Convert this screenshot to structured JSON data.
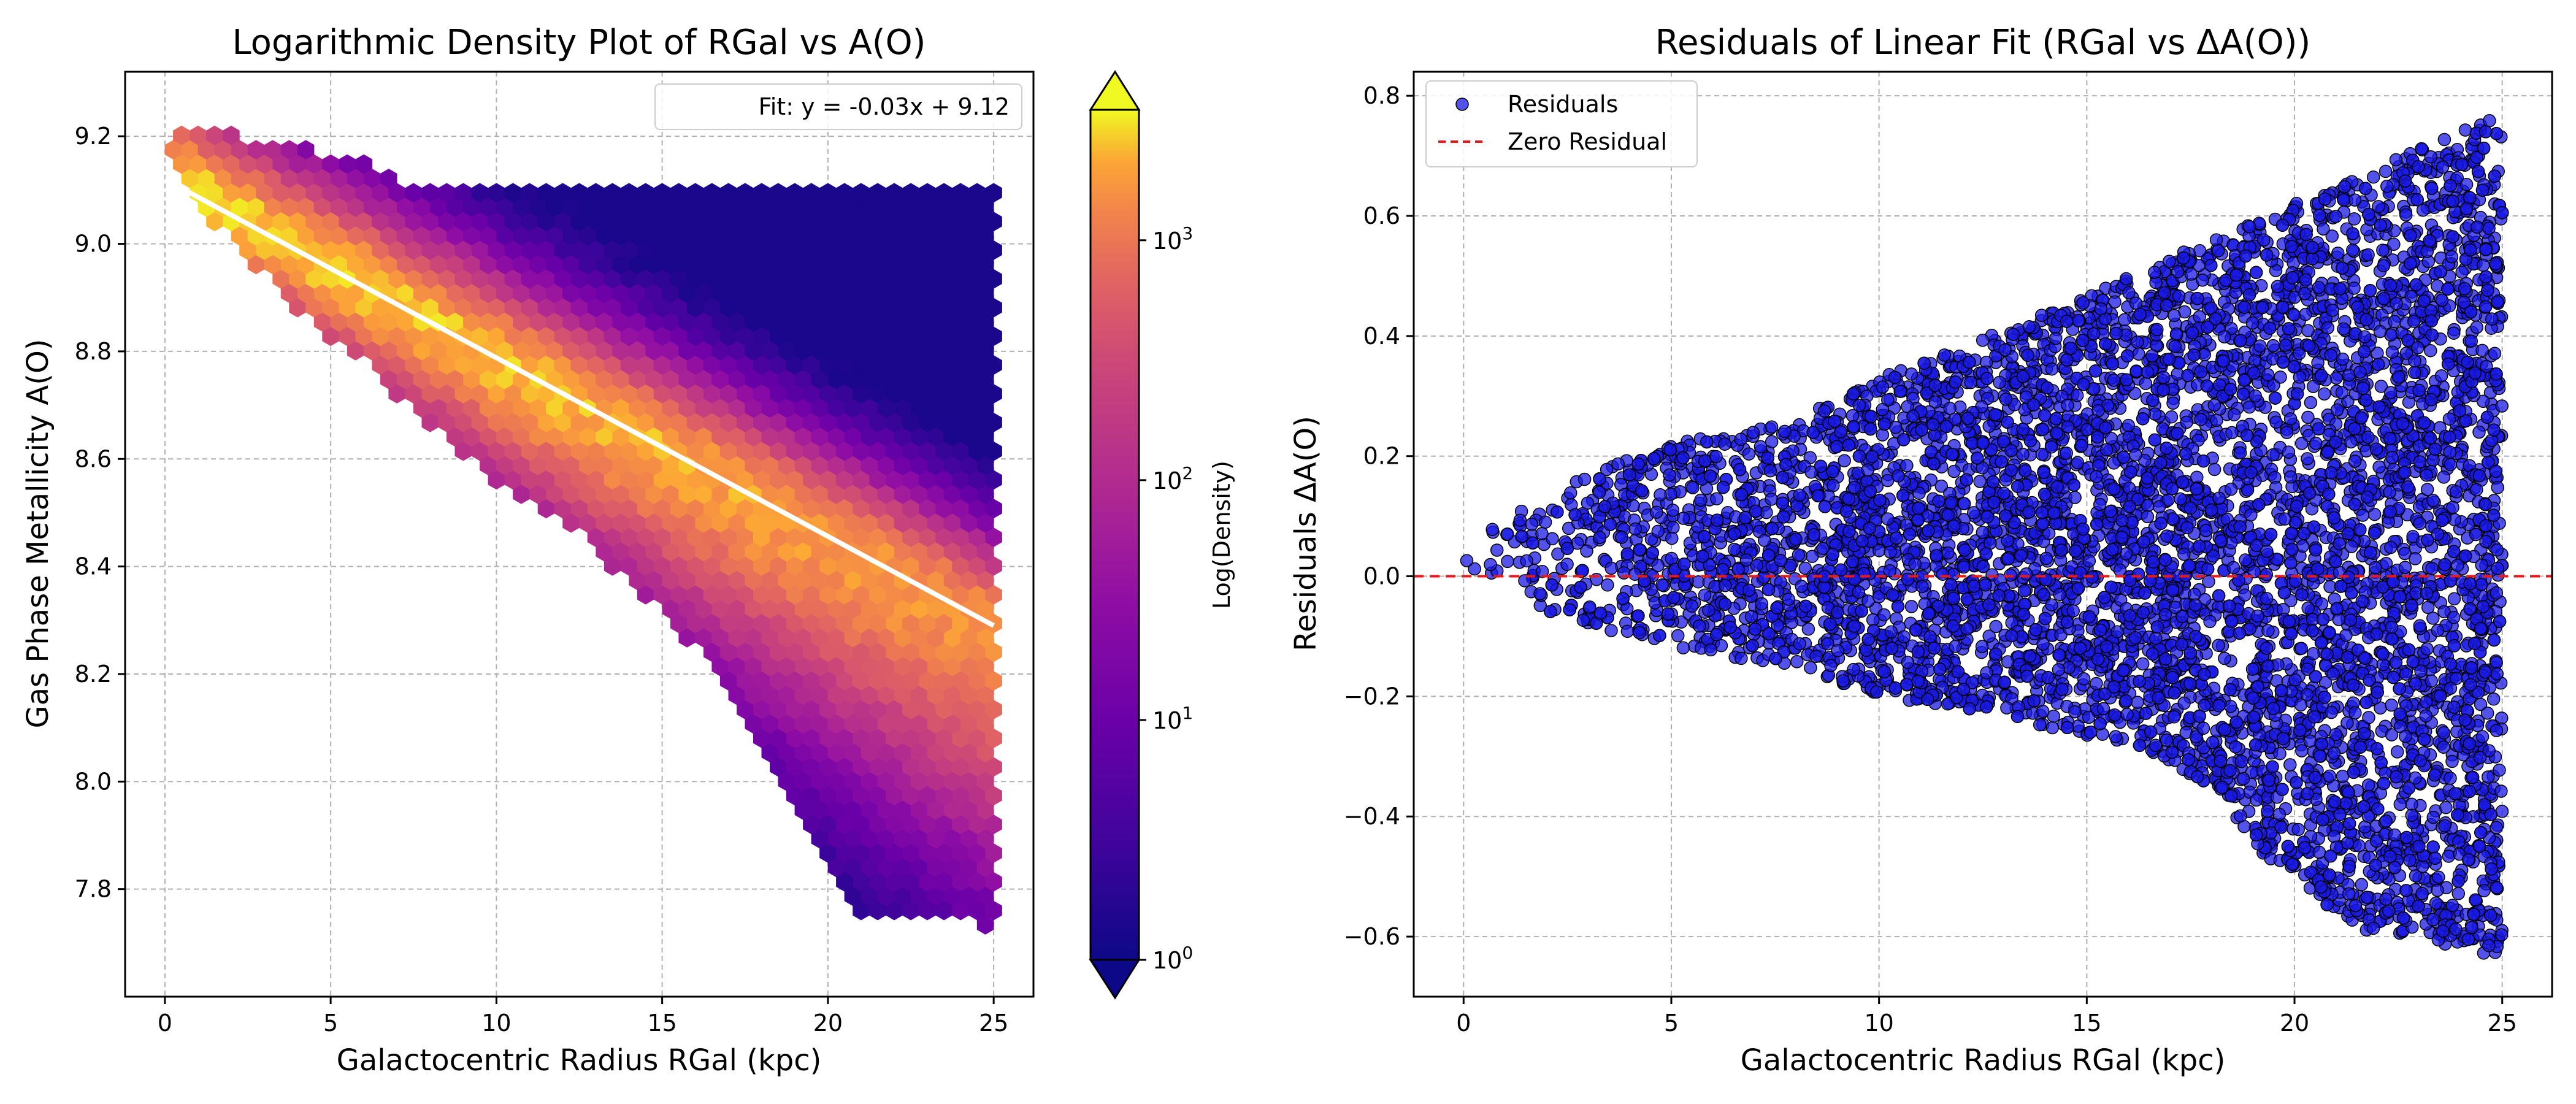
{
  "chart_data": [
    {
      "type": "hexbin",
      "title": "Logarithmic Density Plot of RGal vs A(O)",
      "xlabel": "Galactocentric Radius RGal (kpc)",
      "ylabel": "Gas Phase Metallicity A(O)",
      "xlim": [
        -1.2,
        26.2
      ],
      "ylim": [
        7.6,
        9.32
      ],
      "xticks": [
        0,
        5,
        10,
        15,
        20,
        25
      ],
      "yticks": [
        7.8,
        8.0,
        8.2,
        8.4,
        8.6,
        8.8,
        9.0,
        9.2
      ],
      "grid": true,
      "colormap": "plasma",
      "color_scale": "log",
      "colorbar": {
        "label": "Log(Density)",
        "range": [
          1,
          3500
        ],
        "ticks": [
          {
            "base": "10",
            "exp": "0",
            "value": 1
          },
          {
            "base": "10",
            "exp": "1",
            "value": 10
          },
          {
            "base": "10",
            "exp": "2",
            "value": 100
          },
          {
            "base": "10",
            "exp": "3",
            "value": 1000
          }
        ],
        "extend": "both"
      },
      "fit_line": {
        "label": "Fit: y = -0.03x + 9.12",
        "slope": -0.0332,
        "intercept": 9.12,
        "x_range": [
          0,
          25
        ],
        "color": "#ffffff"
      },
      "legend": {
        "position": "upper-right",
        "entries": [
          "Fit: y = -0.03x + 9.12"
        ]
      },
      "data_envelope": {
        "x_range": [
          0,
          25
        ],
        "upper_edge": [
          [
            0,
            9.2
          ],
          [
            1,
            9.22
          ],
          [
            3,
            9.19
          ],
          [
            5,
            9.17
          ],
          [
            6,
            9.15
          ],
          [
            7,
            9.12
          ],
          [
            25,
            9.1
          ]
        ],
        "lower_edge": [
          [
            0,
            9.15
          ],
          [
            2,
            9.0
          ],
          [
            4,
            8.87
          ],
          [
            6,
            8.78
          ],
          [
            8,
            8.66
          ],
          [
            10,
            8.56
          ],
          [
            12,
            8.49
          ],
          [
            14,
            8.37
          ],
          [
            16,
            8.25
          ],
          [
            18,
            8.08
          ],
          [
            20,
            7.86
          ],
          [
            21,
            7.75
          ],
          [
            25,
            7.73
          ]
        ]
      }
    },
    {
      "type": "scatter",
      "title": "Residuals of Linear Fit (RGal vs ΔA(O))",
      "xlabel": "Galactocentric Radius RGal (kpc)",
      "ylabel": "Residuals ΔA(O)",
      "xlim": [
        -1.2,
        26.2
      ],
      "ylim": [
        -0.7,
        0.84
      ],
      "xticks": [
        0,
        5,
        10,
        15,
        20,
        25
      ],
      "yticks": [
        -0.6,
        -0.4,
        -0.2,
        0.0,
        0.2,
        0.4,
        0.6,
        0.8
      ],
      "grid": true,
      "series": [
        {
          "name": "Residuals",
          "color": "#1a1ae6",
          "edge_color": "#000000",
          "envelope_upper": [
            [
              0,
              0.03
            ],
            [
              1,
              0.1
            ],
            [
              3,
              0.17
            ],
            [
              5,
              0.22
            ],
            [
              8,
              0.26
            ],
            [
              10,
              0.33
            ],
            [
              12,
              0.38
            ],
            [
              15,
              0.47
            ],
            [
              18,
              0.56
            ],
            [
              20,
              0.62
            ],
            [
              22,
              0.68
            ],
            [
              24.5,
              0.76
            ]
          ],
          "envelope_lower": [
            [
              0,
              0.02
            ],
            [
              2,
              -0.06
            ],
            [
              4,
              -0.1
            ],
            [
              6,
              -0.13
            ],
            [
              8,
              -0.15
            ],
            [
              10,
              -0.2
            ],
            [
              12,
              -0.22
            ],
            [
              14,
              -0.25
            ],
            [
              16,
              -0.28
            ],
            [
              18,
              -0.35
            ],
            [
              19,
              -0.45
            ],
            [
              20,
              -0.5
            ],
            [
              21,
              -0.56
            ],
            [
              22,
              -0.6
            ],
            [
              23,
              -0.6
            ],
            [
              24.5,
              -0.63
            ]
          ]
        }
      ],
      "reference_line": {
        "name": "Zero Residual",
        "y": 0.0,
        "color": "#e41a1c",
        "style": "dashed"
      },
      "legend": {
        "position": "upper-left",
        "entries": [
          "Residuals",
          "Zero Residual"
        ]
      }
    }
  ]
}
